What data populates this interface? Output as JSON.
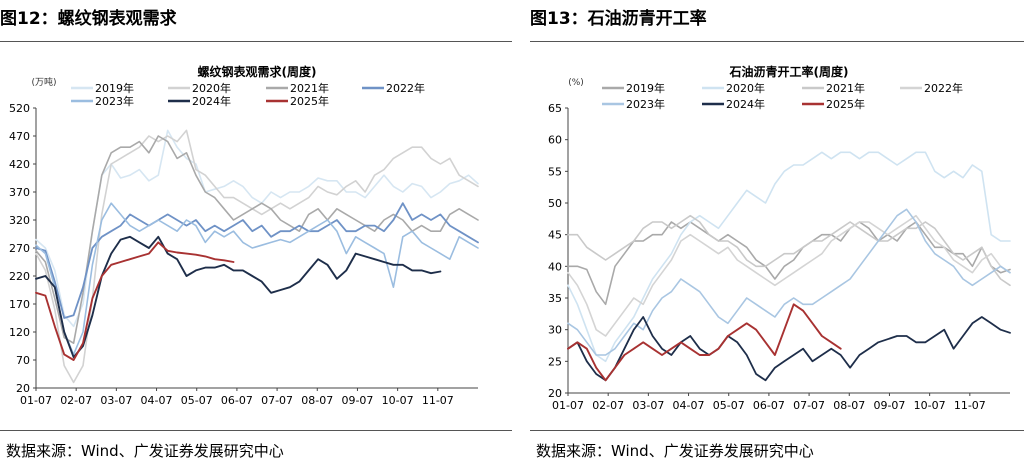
{
  "figures": [
    {
      "heading": "图12：螺纹钢表观需求",
      "source": "数据来源：Wind、广发证券发展研究中心"
    },
    {
      "heading": "图13：石油沥青开工率",
      "source": "数据来源：Wind、广发证券发展研究中心"
    }
  ],
  "chart_data": [
    {
      "type": "line",
      "title": "螺纹钢表观需求(周度)",
      "unit": "(万吨)",
      "ylim": [
        20,
        520
      ],
      "yticks": [
        20,
        70,
        120,
        170,
        220,
        270,
        320,
        370,
        420,
        470,
        520
      ],
      "x_labels": [
        "01-07",
        "02-07",
        "03-07",
        "04-07",
        "05-07",
        "06-07",
        "07-07",
        "08-07",
        "09-07",
        "10-07",
        "11-07"
      ],
      "grid": false,
      "legend": "top",
      "series": [
        {
          "name": "2019年",
          "color": "#d6e6f2",
          "width": 1.6,
          "values": [
            285,
            270,
            230,
            150,
            130,
            170,
            300,
            400,
            420,
            395,
            400,
            410,
            390,
            400,
            480,
            450,
            430,
            420,
            370,
            375,
            380,
            390,
            380,
            360,
            350,
            370,
            360,
            370,
            370,
            380,
            395,
            390,
            390,
            370,
            370,
            360,
            380,
            400,
            380,
            370,
            385,
            380,
            360,
            370,
            385,
            390,
            400,
            385
          ]
        },
        {
          "name": "2020年",
          "color": "#d2d2d2",
          "width": 1.6,
          "values": [
            260,
            230,
            160,
            60,
            30,
            60,
            180,
            330,
            420,
            430,
            440,
            450,
            470,
            460,
            470,
            460,
            480,
            410,
            400,
            380,
            360,
            360,
            350,
            340,
            330,
            340,
            350,
            340,
            350,
            360,
            380,
            370,
            365,
            380,
            390,
            370,
            400,
            410,
            430,
            440,
            450,
            450,
            430,
            420,
            430,
            400,
            390,
            380
          ]
        },
        {
          "name": "2021年",
          "color": "#a9a9a9",
          "width": 1.6,
          "values": [
            265,
            245,
            180,
            110,
            100,
            190,
            300,
            400,
            440,
            450,
            450,
            460,
            440,
            470,
            460,
            430,
            440,
            400,
            370,
            360,
            340,
            320,
            330,
            340,
            350,
            340,
            320,
            310,
            300,
            330,
            340,
            320,
            340,
            330,
            320,
            310,
            300,
            320,
            330,
            320,
            300,
            310,
            300,
            300,
            330,
            340,
            330,
            320
          ]
        },
        {
          "name": "2022年",
          "color": "#6f92c6",
          "width": 1.8,
          "values": [
            270,
            265,
            210,
            145,
            150,
            200,
            270,
            290,
            300,
            310,
            330,
            320,
            310,
            320,
            330,
            320,
            310,
            320,
            300,
            310,
            300,
            310,
            320,
            300,
            310,
            290,
            300,
            300,
            310,
            300,
            300,
            310,
            320,
            300,
            300,
            310,
            310,
            300,
            320,
            350,
            320,
            330,
            320,
            330,
            310,
            300,
            290,
            280
          ]
        },
        {
          "name": "2023年",
          "color": "#9bbde0",
          "width": 1.6,
          "values": [
            275,
            260,
            200,
            120,
            80,
            120,
            240,
            320,
            350,
            330,
            310,
            300,
            310,
            320,
            310,
            300,
            320,
            310,
            280,
            300,
            290,
            300,
            280,
            270,
            275,
            280,
            285,
            280,
            290,
            300,
            310,
            320,
            300,
            260,
            290,
            280,
            270,
            260,
            200,
            290,
            300,
            280,
            270,
            260,
            250,
            290,
            280,
            270
          ]
        },
        {
          "name": "2024年",
          "color": "#1e2e4a",
          "width": 1.9,
          "values": [
            215,
            220,
            200,
            120,
            75,
            95,
            150,
            220,
            260,
            285,
            290,
            280,
            270,
            290,
            260,
            250,
            220,
            230,
            235,
            235,
            240,
            230,
            230,
            220,
            210,
            190,
            195,
            200,
            210,
            230,
            250,
            240,
            215,
            230,
            260,
            255,
            250,
            245,
            240,
            240,
            230,
            230,
            225,
            228
          ]
        },
        {
          "name": "2025年",
          "color": "#a83232",
          "width": 1.9,
          "values": [
            190,
            185,
            130,
            80,
            70,
            100,
            180,
            220,
            240,
            245,
            250,
            255,
            260,
            280,
            265,
            262,
            260,
            258,
            255,
            250,
            248,
            245
          ]
        }
      ]
    },
    {
      "type": "line",
      "title": "石油沥青开工率(周度)",
      "unit": "(%)",
      "ylim": [
        20,
        65
      ],
      "yticks": [
        20,
        25,
        30,
        35,
        40,
        45,
        50,
        55,
        60,
        65
      ],
      "x_labels": [
        "01-07",
        "02-07",
        "03-07",
        "04-07",
        "05-07",
        "06-07",
        "07-07",
        "08-07",
        "09-07",
        "10-07",
        "11-07"
      ],
      "grid": false,
      "legend": "top",
      "series": [
        {
          "name": "2019年",
          "color": "#a9a9a9",
          "width": 1.6,
          "values": [
            40,
            40,
            39.5,
            36,
            34,
            40,
            42,
            44,
            44,
            45,
            45,
            47,
            46,
            47,
            46,
            45,
            44,
            45,
            44,
            43,
            41,
            40,
            38,
            40,
            41,
            43,
            44,
            45,
            45,
            44,
            46,
            47,
            46,
            44,
            45,
            44,
            46,
            47,
            45,
            43,
            43,
            42,
            42,
            40,
            43,
            40,
            39,
            39.5
          ]
        },
        {
          "name": "2020年",
          "color": "#cfe3f1",
          "width": 1.6,
          "values": [
            37,
            34,
            30,
            26,
            25,
            28,
            30,
            32,
            35,
            38,
            40,
            42,
            45,
            47,
            48,
            47,
            46,
            48,
            50,
            52,
            51,
            50,
            53,
            55,
            56,
            56,
            57,
            58,
            57,
            58,
            58,
            57,
            58,
            58,
            57,
            56,
            57,
            58,
            58,
            55,
            54,
            55,
            54,
            56,
            55,
            45,
            44,
            44
          ]
        },
        {
          "name": "2021年",
          "color": "#c9c9c9",
          "width": 1.6,
          "values": [
            45,
            45,
            43,
            42,
            41,
            42,
            43,
            44,
            46,
            47,
            47,
            46,
            47,
            48,
            47,
            45,
            44,
            44,
            43,
            41,
            40,
            40,
            41,
            42,
            42,
            43,
            44,
            44,
            45,
            46,
            47,
            46,
            45,
            44,
            44,
            45,
            46,
            46,
            47,
            46,
            44,
            42,
            41,
            42,
            43,
            40,
            38,
            37
          ]
        },
        {
          "name": "2022年",
          "color": "#d4d4d4",
          "width": 1.6,
          "values": [
            39,
            37,
            34,
            30,
            29,
            31,
            33,
            35,
            34,
            37,
            39,
            41,
            44,
            45,
            44,
            43,
            42,
            43,
            41,
            40,
            39,
            38,
            37,
            38,
            39,
            40,
            41,
            42,
            44,
            45,
            46,
            47,
            47,
            46,
            45,
            46,
            47,
            48,
            46,
            44,
            43,
            41,
            40,
            39,
            41,
            42,
            40,
            39
          ]
        },
        {
          "name": "2023年",
          "color": "#a9c6e2",
          "width": 1.6,
          "values": [
            31,
            30,
            28,
            26,
            26,
            27,
            29,
            31,
            30,
            33,
            35,
            36,
            38,
            37,
            36,
            34,
            32,
            31,
            33,
            35,
            34,
            33,
            32,
            34,
            35,
            34,
            34,
            35,
            36,
            37,
            38,
            40,
            42,
            44,
            46,
            48,
            49,
            47,
            44,
            42,
            41,
            40,
            38,
            37,
            38,
            39,
            40,
            39
          ]
        },
        {
          "name": "2024年",
          "color": "#1e2e4a",
          "width": 1.8,
          "values": [
            27,
            28,
            25,
            23,
            22,
            24,
            27,
            30,
            32,
            29,
            27,
            26,
            28,
            29,
            27,
            26,
            27,
            29,
            28,
            26,
            23,
            22,
            24,
            25,
            26,
            27,
            25,
            26,
            27,
            26,
            24,
            26,
            27,
            28,
            28.5,
            29,
            29,
            28,
            28,
            29,
            30,
            27,
            29,
            31,
            32,
            31,
            30,
            29.5
          ]
        },
        {
          "name": "2025年",
          "color": "#a83232",
          "width": 1.9,
          "values": [
            27,
            28,
            27,
            24,
            22,
            24,
            26,
            27,
            28,
            27,
            26,
            27,
            28,
            27,
            26,
            26,
            27,
            29,
            30,
            31,
            30,
            28,
            26,
            30,
            34,
            33,
            31,
            29,
            28,
            27
          ]
        }
      ]
    }
  ]
}
